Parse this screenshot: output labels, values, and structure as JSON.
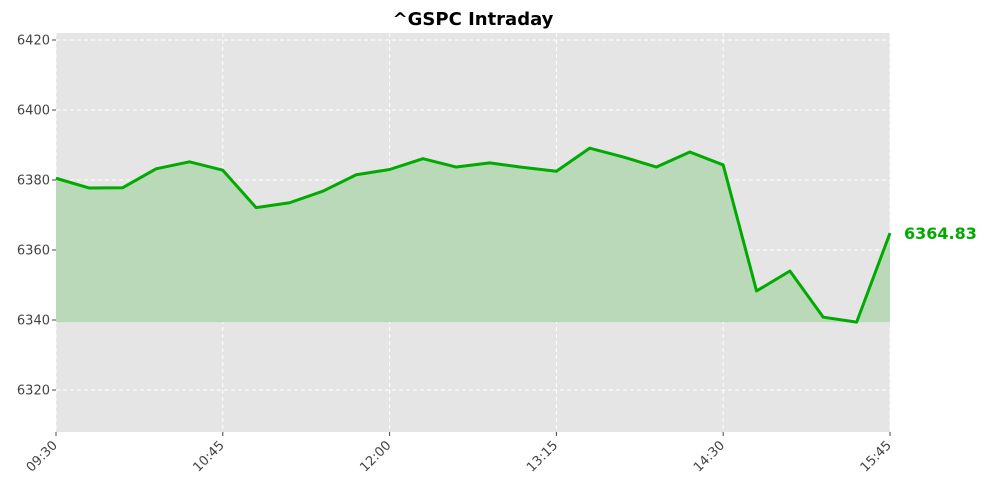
{
  "chart_data": {
    "type": "area",
    "title": "^GSPC Intraday",
    "xlabel": "",
    "ylabel": "",
    "x": [
      "09:30",
      "09:45",
      "10:00",
      "10:15",
      "10:30",
      "10:45",
      "11:00",
      "11:15",
      "11:30",
      "11:45",
      "12:00",
      "12:15",
      "12:30",
      "12:45",
      "13:00",
      "13:15",
      "13:30",
      "13:45",
      "14:00",
      "14:15",
      "14:30",
      "14:45",
      "15:00",
      "15:15",
      "15:30",
      "15:45"
    ],
    "series": [
      {
        "name": "",
        "values": [
          6380.5,
          6377.7,
          6377.8,
          6383.2,
          6385.2,
          6382.8,
          6372.1,
          6373.5,
          6376.8,
          6381.5,
          6383.0,
          6386.1,
          6383.7,
          6384.9,
          6383.6,
          6382.5,
          6389.1,
          6386.6,
          6383.7,
          6388.0,
          6384.3,
          6348.3,
          6354.0,
          6340.8,
          6339.4,
          6364.83
        ]
      }
    ],
    "fill_baseline": 6339.4,
    "last_value_label": "6364.83",
    "x_tick_labels": [
      "09:30",
      "10:45",
      "12:00",
      "13:15",
      "14:30",
      "15:45"
    ],
    "y_ticks": [
      6320,
      6340,
      6360,
      6380,
      6400,
      6420
    ],
    "xlim": [
      "09:30",
      "15:45"
    ],
    "ylim": [
      6308,
      6422
    ],
    "grid": true,
    "colors": {
      "line": "#00aa00",
      "fill": "#bad9b9",
      "plot_background": "#e5e5e5",
      "grid": "#ffffff",
      "last_label": "#00aa00"
    }
  }
}
